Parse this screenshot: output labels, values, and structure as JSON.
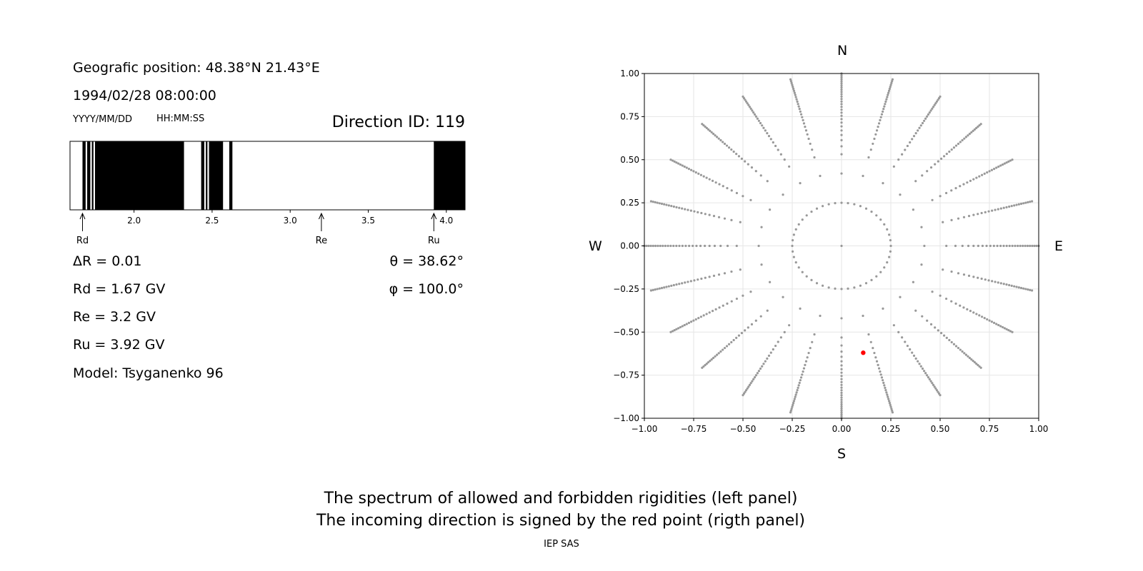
{
  "left_panel": {
    "position_label": "Geografic position: 48.38°N 21.43°E",
    "datetime": "1994/02/28 08:00:00",
    "date_format": "YYYY/MM/DD",
    "time_format": "HH:MM:SS",
    "direction_id": "Direction ID: 119",
    "delta_r": "ΔR = 0.01",
    "rd_value": "Rd = 1.67 GV",
    "re_value": "Re = 3.2 GV",
    "ru_value": "Ru = 3.92 GV",
    "model": "Model: Tsyganenko 96",
    "theta": "θ = 38.62°",
    "phi": "φ = 100.0°"
  },
  "right_panel": {
    "north": "N",
    "south": "S",
    "west": "W",
    "east": "E"
  },
  "caption": {
    "line1": "The spectrum of allowed and forbidden rigidities (left panel)",
    "line2": "The incoming direction is signed by the red point (rigth panel)",
    "credit": "IEP SAS"
  },
  "chart_data": [
    {
      "type": "bar",
      "name": "rigidity-spectrum",
      "xlim": [
        1.59,
        4.12
      ],
      "xticks": [
        2.0,
        2.5,
        3.0,
        3.5,
        4.0
      ],
      "tick_labels": [
        "2.0",
        "2.5",
        "3.0",
        "3.5",
        "4.0"
      ],
      "forbidden_bands": [
        [
          1.67,
          1.69
        ],
        [
          1.7,
          1.72
        ],
        [
          1.73,
          1.74
        ],
        [
          1.75,
          2.32
        ],
        [
          2.43,
          2.45
        ],
        [
          2.46,
          2.47
        ],
        [
          2.48,
          2.57
        ],
        [
          2.61,
          2.63
        ],
        [
          3.92,
          4.12
        ]
      ],
      "markers": [
        {
          "label": "Rd",
          "value": 1.67
        },
        {
          "label": "Re",
          "value": 3.2
        },
        {
          "label": "Ru",
          "value": 3.92
        }
      ],
      "colors": {
        "forbidden": "#000000",
        "allowed": "#ffffff"
      }
    },
    {
      "type": "scatter",
      "name": "direction-map",
      "xlim": [
        -1.0,
        1.0
      ],
      "ylim": [
        -1.0,
        1.0
      ],
      "xticks": [
        -1.0,
        -0.75,
        -0.5,
        -0.25,
        0.0,
        0.25,
        0.5,
        0.75,
        1.0
      ],
      "yticks": [
        -1.0,
        -0.75,
        -0.5,
        -0.25,
        0.0,
        0.25,
        0.5,
        0.75,
        1.0
      ],
      "xtick_labels": [
        "−1.00",
        "−0.75",
        "−0.50",
        "−0.25",
        "0.00",
        "0.25",
        "0.50",
        "0.75",
        "1.00"
      ],
      "ytick_labels": [
        "−1.00",
        "−0.75",
        "−0.50",
        "−0.25",
        "0.00",
        "0.25",
        "0.50",
        "0.75",
        "1.00"
      ],
      "grid": true,
      "rings": [
        0.25,
        0.42,
        0.56,
        0.68,
        0.78,
        0.86,
        0.92,
        0.96,
        0.99,
        1.0
      ],
      "spokes": 24,
      "spoke_points": 28,
      "highlight": {
        "x": 0.11,
        "y": -0.62
      },
      "colors": {
        "points": "#999999",
        "highlight": "#ff0000",
        "grid": "#e6e6e6"
      }
    }
  ]
}
